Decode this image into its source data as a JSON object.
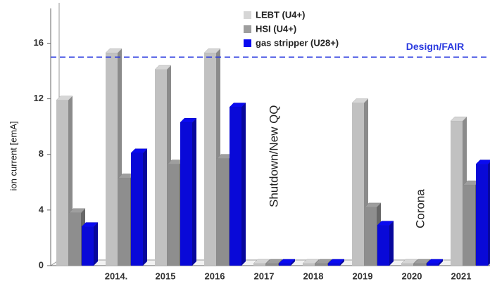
{
  "chart_data": {
    "type": "bar",
    "categories": [
      null,
      "2014.",
      "2015",
      "2016",
      "2017",
      "2018",
      "2019",
      "2020",
      "2021"
    ],
    "series": [
      {
        "name": "LEBT (U4+)",
        "color": "#d6d6d6",
        "values": [
          11.9,
          15.3,
          14.1,
          15.3,
          0,
          0,
          11.7,
          0,
          10.4
        ]
      },
      {
        "name": "HSI (U4+)",
        "color": "#9e9e9e",
        "values": [
          3.8,
          6.3,
          7.3,
          7.7,
          0,
          0,
          4.2,
          0,
          5.8
        ]
      },
      {
        "name": "gas stripper (U28+)",
        "color": "#0a0af0",
        "values": [
          2.8,
          8.1,
          10.3,
          11.4,
          0,
          0,
          2.9,
          0,
          7.3
        ]
      }
    ],
    "ylabel": "ion current  [emA]",
    "ylim": [
      0,
      18.5
    ],
    "yticks": [
      0,
      4,
      8,
      12,
      16
    ],
    "reference_line": {
      "value": 15,
      "label": "Design/FAIR",
      "color": "#2a3adf"
    },
    "annotations": [
      "Shutdown/New QQ",
      "Corona"
    ]
  }
}
